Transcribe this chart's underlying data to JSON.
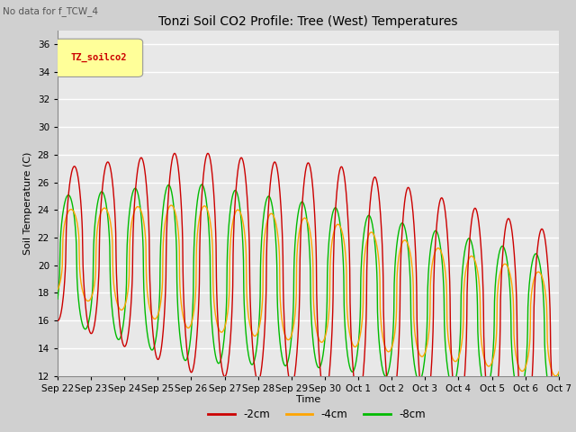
{
  "title": "Tonzi Soil CO2 Profile: Tree (West) Temperatures",
  "subtitle": "No data for f_TCW_4",
  "ylabel": "Soil Temperature (C)",
  "xlabel": "Time",
  "ylim": [
    12,
    37
  ],
  "yticks": [
    12,
    14,
    16,
    18,
    20,
    22,
    24,
    26,
    28,
    30,
    32,
    34,
    36
  ],
  "legend_box_label": "TZ_soilco2",
  "series": [
    {
      "label": "-2cm",
      "color": "#CC0000"
    },
    {
      "label": "-4cm",
      "color": "#FFA500"
    },
    {
      "label": "-8cm",
      "color": "#00BB00"
    }
  ],
  "tick_labels": [
    "Sep 22",
    "Sep 23",
    "Sep 24",
    "Sep 25",
    "Sep 26",
    "Sep 27",
    "Sep 28",
    "Sep 29",
    "Sep 30",
    "Oct 1",
    "Oct 2",
    "Oct 3",
    "Oct 4",
    "Oct 5",
    "Oct 6",
    "Oct 7"
  ],
  "figsize": [
    6.4,
    4.8
  ],
  "dpi": 100
}
